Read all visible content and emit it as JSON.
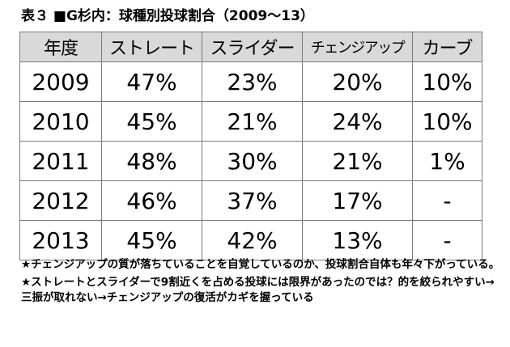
{
  "title": "表３ ■G杉内：球種別投球割合（2009～13）",
  "table": {
    "headers": [
      "年度",
      "ストレート",
      "スライダー",
      "チェンジアップ",
      "カーブ"
    ],
    "rows": [
      [
        "2009",
        "47%",
        "23%",
        "20%",
        "10%"
      ],
      [
        "2010",
        "45%",
        "21%",
        "24%",
        "10%"
      ],
      [
        "2011",
        "48%",
        "30%",
        "21%",
        "1%"
      ],
      [
        "2012",
        "46%",
        "37%",
        "17%",
        "-"
      ],
      [
        "2013",
        "45%",
        "42%",
        "13%",
        "-"
      ]
    ]
  },
  "notes": [
    "★チェンジアップの質が落ちていることを自覚しているのか、投球割合自体も年々下がっている。",
    "★ストレートとスライダーで9割近くを占める投球には限界があったのでは？的を絞られやすい→三振が取れない→チェンジアップの復活がカギを握っている"
  ]
}
